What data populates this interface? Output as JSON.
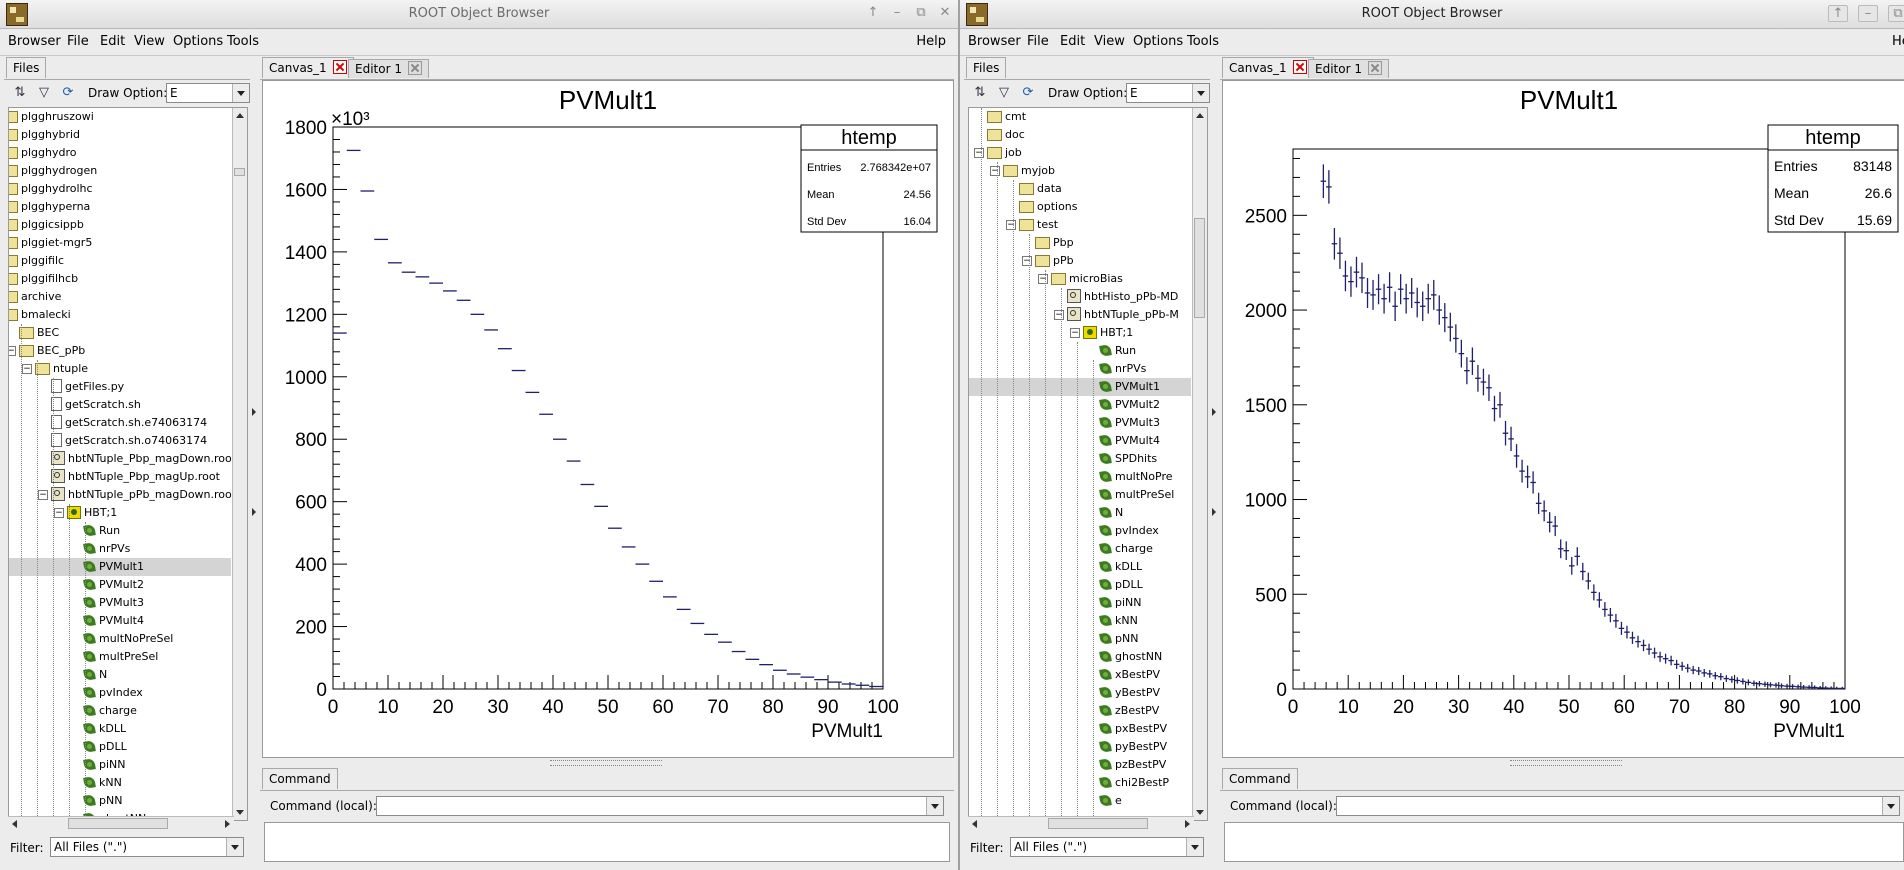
{
  "left": {
    "title": "ROOT Object Browser",
    "menu": [
      "Browser",
      "File",
      "Edit",
      "View",
      "Options",
      "Tools"
    ],
    "help": "Help",
    "files_tab": "Files",
    "draw_option_label": "Draw Option:",
    "draw_option_value": "E",
    "canvas_tab": "Canvas_1",
    "editor_tab": "Editor 1",
    "command_tab": "Command",
    "command_label": "Command (local):",
    "filter_label": "Filter:",
    "filter_value": "All Files (\".\")",
    "tree": [
      {
        "label": "plgghruszowi",
        "icon": "folder",
        "depth": 0
      },
      {
        "label": "plgghybrid",
        "icon": "folder",
        "depth": 0
      },
      {
        "label": "plgghydro",
        "icon": "folder",
        "depth": 0
      },
      {
        "label": "plgghydrogen",
        "icon": "folder",
        "depth": 0
      },
      {
        "label": "plgghydrolhc",
        "icon": "folder",
        "depth": 0
      },
      {
        "label": "plgghyperna",
        "icon": "folder",
        "depth": 0
      },
      {
        "label": "plggicsippb",
        "icon": "folder",
        "depth": 0
      },
      {
        "label": "plggiet-mgr5",
        "icon": "folder",
        "depth": 0
      },
      {
        "label": "plggifilc",
        "icon": "folder",
        "depth": 0
      },
      {
        "label": "plggifilhcb",
        "icon": "folder",
        "depth": 0
      },
      {
        "label": "archive",
        "icon": "folder",
        "depth": 0
      },
      {
        "label": "bmalecki",
        "icon": "folder",
        "depth": 0
      },
      {
        "label": "BEC",
        "icon": "folder",
        "depth": 1
      },
      {
        "label": "BEC_pPb",
        "icon": "folder",
        "depth": 1
      },
      {
        "label": "ntuple",
        "icon": "folder",
        "depth": 2
      },
      {
        "label": "getFiles.py",
        "icon": "file",
        "depth": 3
      },
      {
        "label": "getScratch.sh",
        "icon": "file",
        "depth": 3
      },
      {
        "label": "getScratch.sh.e74063174",
        "icon": "file",
        "depth": 3
      },
      {
        "label": "getScratch.sh.o74063174",
        "icon": "file",
        "depth": 3
      },
      {
        "label": "hbtNTuple_Pbp_magDown.root",
        "icon": "root",
        "depth": 3
      },
      {
        "label": "hbtNTuple_Pbp_magUp.root",
        "icon": "root",
        "depth": 3
      },
      {
        "label": "hbtNTuple_pPb_magDown.root",
        "icon": "root",
        "depth": 3
      },
      {
        "label": "HBT;1",
        "icon": "tree",
        "depth": 4
      },
      {
        "label": "Run",
        "icon": "leaf",
        "depth": 5
      },
      {
        "label": "nrPVs",
        "icon": "leaf",
        "depth": 5
      },
      {
        "label": "PVMult1",
        "icon": "leaf",
        "depth": 5
      },
      {
        "label": "PVMult2",
        "icon": "leaf",
        "depth": 5
      },
      {
        "label": "PVMult3",
        "icon": "leaf",
        "depth": 5
      },
      {
        "label": "PVMult4",
        "icon": "leaf",
        "depth": 5
      },
      {
        "label": "multNoPreSel",
        "icon": "leaf",
        "depth": 5
      },
      {
        "label": "multPreSel",
        "icon": "leaf",
        "depth": 5
      },
      {
        "label": "N",
        "icon": "leaf",
        "depth": 5
      },
      {
        "label": "pvIndex",
        "icon": "leaf",
        "depth": 5
      },
      {
        "label": "charge",
        "icon": "leaf",
        "depth": 5
      },
      {
        "label": "kDLL",
        "icon": "leaf",
        "depth": 5
      },
      {
        "label": "pDLL",
        "icon": "leaf",
        "depth": 5
      },
      {
        "label": "piNN",
        "icon": "leaf",
        "depth": 5
      },
      {
        "label": "kNN",
        "icon": "leaf",
        "depth": 5
      },
      {
        "label": "pNN",
        "icon": "leaf",
        "depth": 5
      },
      {
        "label": "ghostNN",
        "icon": "leaf",
        "depth": 5
      }
    ]
  },
  "right": {
    "title": "ROOT Object Browser",
    "menu": [
      "Browser",
      "File",
      "Edit",
      "View",
      "Options",
      "Tools"
    ],
    "help": "Help",
    "files_tab": "Files",
    "draw_option_label": "Draw Option:",
    "draw_option_value": "E",
    "canvas_tab": "Canvas_1",
    "editor_tab": "Editor 1",
    "command_tab": "Command",
    "command_label": "Command (local):",
    "filter_label": "Filter:",
    "filter_value": "All Files (\".\")",
    "tree": [
      {
        "label": "cmt",
        "icon": "folder",
        "depth": 1
      },
      {
        "label": "doc",
        "icon": "folder",
        "depth": 1
      },
      {
        "label": "job",
        "icon": "folder",
        "depth": 1
      },
      {
        "label": "myjob",
        "icon": "folder",
        "depth": 2
      },
      {
        "label": "data",
        "icon": "folder",
        "depth": 3
      },
      {
        "label": "options",
        "icon": "folder",
        "depth": 3
      },
      {
        "label": "test",
        "icon": "folder",
        "depth": 3
      },
      {
        "label": "Pbp",
        "icon": "folder",
        "depth": 4
      },
      {
        "label": "pPb",
        "icon": "folder",
        "depth": 4
      },
      {
        "label": "microBias",
        "icon": "folder",
        "depth": 5
      },
      {
        "label": "hbtHisto_pPb-MD",
        "icon": "root",
        "depth": 6
      },
      {
        "label": "hbtNTuple_pPb-M",
        "icon": "root",
        "depth": 6
      },
      {
        "label": "HBT;1",
        "icon": "tree",
        "depth": 7
      },
      {
        "label": "Run",
        "icon": "leaf",
        "depth": 8
      },
      {
        "label": "nrPVs",
        "icon": "leaf",
        "depth": 8
      },
      {
        "label": "PVMult1",
        "icon": "leaf",
        "depth": 8
      },
      {
        "label": "PVMult2",
        "icon": "leaf",
        "depth": 8
      },
      {
        "label": "PVMult3",
        "icon": "leaf",
        "depth": 8
      },
      {
        "label": "PVMult4",
        "icon": "leaf",
        "depth": 8
      },
      {
        "label": "SPDhits",
        "icon": "leaf",
        "depth": 8
      },
      {
        "label": "multNoPre",
        "icon": "leaf",
        "depth": 8
      },
      {
        "label": "multPreSel",
        "icon": "leaf",
        "depth": 8
      },
      {
        "label": "N",
        "icon": "leaf",
        "depth": 8
      },
      {
        "label": "pvIndex",
        "icon": "leaf",
        "depth": 8
      },
      {
        "label": "charge",
        "icon": "leaf",
        "depth": 8
      },
      {
        "label": "kDLL",
        "icon": "leaf",
        "depth": 8
      },
      {
        "label": "pDLL",
        "icon": "leaf",
        "depth": 8
      },
      {
        "label": "piNN",
        "icon": "leaf",
        "depth": 8
      },
      {
        "label": "kNN",
        "icon": "leaf",
        "depth": 8
      },
      {
        "label": "pNN",
        "icon": "leaf",
        "depth": 8
      },
      {
        "label": "ghostNN",
        "icon": "leaf",
        "depth": 8
      },
      {
        "label": "xBestPV",
        "icon": "leaf",
        "depth": 8
      },
      {
        "label": "yBestPV",
        "icon": "leaf",
        "depth": 8
      },
      {
        "label": "zBestPV",
        "icon": "leaf",
        "depth": 8
      },
      {
        "label": "pxBestPV",
        "icon": "leaf",
        "depth": 8
      },
      {
        "label": "pyBestPV",
        "icon": "leaf",
        "depth": 8
      },
      {
        "label": "pzBestPV",
        "icon": "leaf",
        "depth": 8
      },
      {
        "label": "chi2BestP",
        "icon": "leaf",
        "depth": 8
      },
      {
        "label": "e",
        "icon": "leaf",
        "depth": 8
      }
    ]
  },
  "chart_data": [
    {
      "type": "scatter",
      "title": "PVMult1",
      "xlabel": "PVMult1",
      "ylabel": "",
      "y_exponent_label": "×10³",
      "xlim": [
        0,
        100
      ],
      "ylim": [
        0,
        1800
      ],
      "xticks": [
        0,
        10,
        20,
        30,
        40,
        50,
        60,
        70,
        80,
        90,
        100
      ],
      "yticks": [
        0,
        200,
        400,
        600,
        800,
        1000,
        1200,
        1400,
        1600,
        1800
      ],
      "stats": {
        "name": "htemp",
        "entries_label": "Entries",
        "entries": "2.768342e+07",
        "mean_label": "Mean",
        "mean": "24.56",
        "stddev_label": "Std Dev",
        "stddev": "16.04"
      },
      "bin_width": 2.5,
      "x": [
        1.25,
        3.75,
        6.25,
        8.75,
        11.25,
        13.75,
        16.25,
        18.75,
        21.25,
        23.75,
        26.25,
        28.75,
        31.25,
        33.75,
        36.25,
        38.75,
        41.25,
        43.75,
        46.25,
        48.75,
        51.25,
        53.75,
        56.25,
        58.75,
        61.25,
        63.75,
        66.25,
        68.75,
        71.25,
        73.75,
        76.25,
        78.75,
        81.25,
        83.75,
        86.25,
        88.75,
        91.25,
        93.75,
        96.25,
        98.75
      ],
      "y": [
        1140,
        1725,
        1595,
        1440,
        1365,
        1335,
        1320,
        1300,
        1275,
        1245,
        1200,
        1150,
        1090,
        1020,
        950,
        880,
        800,
        730,
        655,
        585,
        515,
        455,
        400,
        345,
        295,
        255,
        210,
        175,
        150,
        120,
        95,
        78,
        60,
        48,
        38,
        30,
        22,
        16,
        12,
        8
      ]
    },
    {
      "type": "scatter",
      "title": "PVMult1",
      "xlabel": "PVMult1",
      "ylabel": "",
      "xlim": [
        0,
        100
      ],
      "ylim": [
        0,
        2850
      ],
      "xticks": [
        0,
        10,
        20,
        30,
        40,
        50,
        60,
        70,
        80,
        90,
        100
      ],
      "yticks": [
        0,
        500,
        1000,
        1500,
        2000,
        2500
      ],
      "stats": {
        "name": "htemp",
        "entries_label": "Entries",
        "entries": "83148",
        "mean_label": "Mean",
        "mean": "26.6",
        "stddev_label": "Std Dev",
        "stddev": "15.69"
      },
      "bin_width": 1,
      "x": [
        5.5,
        6.5,
        7.5,
        8.5,
        9.5,
        10.5,
        11.5,
        12.5,
        13.5,
        14.5,
        15.5,
        16.5,
        17.5,
        18.5,
        19.5,
        20.5,
        21.5,
        22.5,
        23.5,
        24.5,
        25.5,
        26.5,
        27.5,
        28.5,
        29.5,
        30.5,
        31.5,
        32.5,
        33.5,
        34.5,
        35.5,
        36.5,
        37.5,
        38.5,
        39.5,
        40.5,
        41.5,
        42.5,
        43.5,
        44.5,
        45.5,
        46.5,
        47.5,
        48.5,
        49.5,
        50.5,
        51.5,
        52.5,
        53.5,
        54.5,
        55.5,
        56.5,
        57.5,
        58.5,
        59.5,
        60.5,
        61.5,
        62.5,
        63.5,
        64.5,
        65.5,
        66.5,
        67.5,
        68.5,
        69.5,
        70.5,
        71.5,
        72.5,
        73.5,
        74.5,
        75.5,
        76.5,
        77.5,
        78.5,
        79.5,
        80.5,
        81.5,
        82.5,
        83.5,
        84.5,
        85.5,
        86.5,
        87.5,
        88.5,
        89.5,
        90.5,
        91.5,
        92.5,
        93.5,
        94.5,
        95.5,
        96.5,
        97.5,
        98.5,
        99.5
      ],
      "y": [
        2680,
        2650,
        2350,
        2300,
        2180,
        2150,
        2200,
        2170,
        2090,
        2080,
        2110,
        2060,
        2120,
        2020,
        2110,
        2060,
        2090,
        2040,
        2020,
        2060,
        2080,
        2000,
        1960,
        1910,
        1850,
        1770,
        1680,
        1730,
        1640,
        1620,
        1590,
        1480,
        1500,
        1350,
        1320,
        1230,
        1150,
        1120,
        1090,
        980,
        940,
        880,
        860,
        740,
        730,
        650,
        700,
        620,
        570,
        510,
        470,
        420,
        390,
        360,
        320,
        300,
        270,
        250,
        230,
        210,
        190,
        170,
        160,
        150,
        130,
        120,
        110,
        100,
        95,
        85,
        80,
        70,
        65,
        55,
        50,
        45,
        40,
        35,
        30,
        28,
        25,
        22,
        20,
        17,
        15,
        14,
        12,
        10,
        9,
        8,
        6,
        5,
        4,
        3,
        3
      ]
    }
  ]
}
